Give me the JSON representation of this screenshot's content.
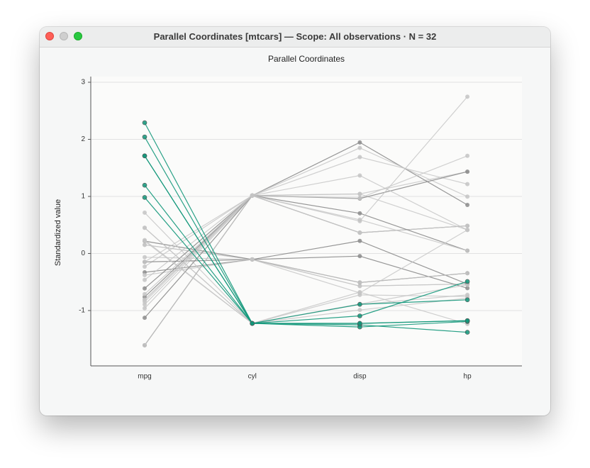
{
  "window": {
    "title": "Parallel Coordinates [mtcars] — Scope: All observations · N = 32"
  },
  "chart_data": {
    "type": "parallel",
    "title": "Parallel Coordinates",
    "y_label": "Standardized value",
    "categories": [
      "mpg",
      "cyl",
      "disp",
      "hp"
    ],
    "ylim": [
      -1.97,
      3.1
    ],
    "yticks": [
      -1,
      0,
      1,
      2,
      3
    ],
    "grid": true,
    "series": [
      {
        "color": "#c4c4c4",
        "values": [
          0.151,
          -0.105,
          -0.571,
          -0.535
        ]
      },
      {
        "color": "#c4c4c4",
        "values": [
          0.151,
          -0.105,
          -0.571,
          -0.535
        ]
      },
      {
        "color": "#c4c4c4",
        "values": [
          0.45,
          -1.225,
          -0.99,
          -0.783
        ]
      },
      {
        "color": "#8c8c8c",
        "values": [
          0.217,
          -0.105,
          0.22,
          -0.535
        ]
      },
      {
        "color": "#c4c4c4",
        "values": [
          -0.231,
          1.015,
          1.043,
          0.413
        ]
      },
      {
        "color": "#8c8c8c",
        "values": [
          -0.33,
          -0.105,
          -0.046,
          -0.608
        ]
      },
      {
        "color": "#c4c4c4",
        "values": [
          -0.961,
          1.015,
          1.043,
          1.434
        ]
      },
      {
        "color": "#c4c4c4",
        "values": [
          0.715,
          -1.225,
          -0.678,
          -1.236
        ]
      },
      {
        "color": "#c4c4c4",
        "values": [
          0.45,
          -1.225,
          -0.726,
          -0.754
        ]
      },
      {
        "color": "#8c8c8c",
        "values": [
          -0.148,
          -0.105,
          -0.509,
          -0.346
        ]
      },
      {
        "color": "#c4c4c4",
        "values": [
          -0.38,
          -0.105,
          -0.509,
          -0.346
        ]
      },
      {
        "color": "#8c8c8c",
        "values": [
          -0.612,
          1.015,
          0.364,
          0.485
        ]
      },
      {
        "color": "#c4c4c4",
        "values": [
          -0.463,
          1.015,
          0.364,
          0.485
        ]
      },
      {
        "color": "#c4c4c4",
        "values": [
          -0.811,
          1.015,
          0.364,
          0.485
        ]
      },
      {
        "color": "#8c8c8c",
        "values": [
          -1.608,
          1.015,
          1.946,
          0.851
        ]
      },
      {
        "color": "#c4c4c4",
        "values": [
          -1.608,
          1.015,
          1.85,
          0.997
        ]
      },
      {
        "color": "#c4c4c4",
        "values": [
          -0.894,
          1.015,
          1.689,
          1.216
        ]
      },
      {
        "color": "#12977a",
        "values": [
          2.042,
          -1.225,
          -1.227,
          -1.177
        ]
      },
      {
        "color": "#12977a",
        "values": [
          1.711,
          -1.225,
          -1.251,
          -1.381
        ]
      },
      {
        "color": "#12977a",
        "values": [
          2.291,
          -1.225,
          -1.288,
          -1.192
        ]
      },
      {
        "color": "#c4c4c4",
        "values": [
          0.234,
          -1.225,
          -0.894,
          -0.725
        ]
      },
      {
        "color": "#8c8c8c",
        "values": [
          -0.762,
          1.015,
          0.704,
          0.049
        ]
      },
      {
        "color": "#c4c4c4",
        "values": [
          -0.811,
          1.015,
          0.591,
          0.049
        ]
      },
      {
        "color": "#8c8c8c",
        "values": [
          -1.127,
          1.015,
          0.963,
          1.434
        ]
      },
      {
        "color": "#c4c4c4",
        "values": [
          -0.148,
          1.015,
          1.366,
          0.413
        ]
      },
      {
        "color": "#12977a",
        "values": [
          1.196,
          -1.225,
          -1.224,
          -1.177
        ]
      },
      {
        "color": "#12977a",
        "values": [
          0.982,
          -1.225,
          -0.891,
          -0.812
        ]
      },
      {
        "color": "#12977a",
        "values": [
          1.711,
          -1.225,
          -1.094,
          -0.491
        ]
      },
      {
        "color": "#c4c4c4",
        "values": [
          -0.712,
          1.015,
          0.971,
          1.711
        ]
      },
      {
        "color": "#c4c4c4",
        "values": [
          -0.065,
          -0.105,
          -0.691,
          0.413
        ]
      },
      {
        "color": "#c4c4c4",
        "values": [
          -0.845,
          1.015,
          0.567,
          2.747
        ]
      },
      {
        "color": "#c4c4c4",
        "values": [
          0.217,
          -1.225,
          -0.885,
          -0.549
        ]
      }
    ]
  }
}
